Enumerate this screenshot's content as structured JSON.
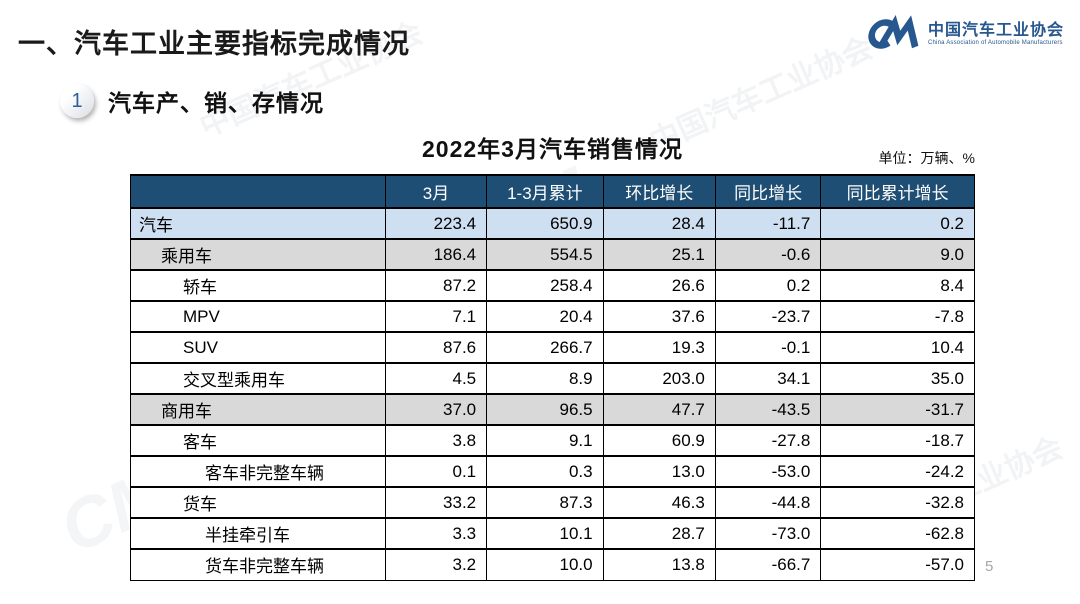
{
  "slide": {
    "main_title": "一、汽车工业主要指标完成情况",
    "section": {
      "badge": "1",
      "title": "汽车产、销、存情况"
    },
    "table_title": "2022年3月汽车销售情况",
    "unit_note": "单位：万辆、%",
    "page_number": "5",
    "watermark_text": "中国汽车工业协会",
    "watermark_monogram": "CM"
  },
  "logo": {
    "name_cn": "中国汽车工业协会",
    "name_en": "China Association of Automobile Manufacturers",
    "color": "#26578E"
  },
  "colors": {
    "header_bg": "#1F4E74",
    "header_text": "#FFFFFF",
    "row_highlight_blue": "#CEDFF1",
    "row_highlight_gray": "#D9D9D9",
    "border": "#000000",
    "badge_number": "#2E5E9E"
  },
  "table": {
    "type": "table",
    "columns": [
      "",
      "3月",
      "1-3月累计",
      "环比增长",
      "同比增长",
      "同比累计增长"
    ],
    "rows": [
      {
        "label": "汽车",
        "level": 0,
        "style": "blue",
        "values": [
          "223.4",
          "650.9",
          "28.4",
          "-11.7",
          "0.2"
        ]
      },
      {
        "label": "乘用车",
        "level": 1,
        "style": "gray",
        "values": [
          "186.4",
          "554.5",
          "25.1",
          "-0.6",
          "9.0"
        ]
      },
      {
        "label": "轿车",
        "level": 2,
        "style": "white",
        "values": [
          "87.2",
          "258.4",
          "26.6",
          "0.2",
          "8.4"
        ]
      },
      {
        "label": "MPV",
        "level": 2,
        "style": "white",
        "values": [
          "7.1",
          "20.4",
          "37.6",
          "-23.7",
          "-7.8"
        ]
      },
      {
        "label": "SUV",
        "level": 2,
        "style": "white",
        "values": [
          "87.6",
          "266.7",
          "19.3",
          "-0.1",
          "10.4"
        ]
      },
      {
        "label": "交叉型乘用车",
        "level": 2,
        "style": "white",
        "values": [
          "4.5",
          "8.9",
          "203.0",
          "34.1",
          "35.0"
        ]
      },
      {
        "label": "商用车",
        "level": 1,
        "style": "gray",
        "values": [
          "37.0",
          "96.5",
          "47.7",
          "-43.5",
          "-31.7"
        ]
      },
      {
        "label": "客车",
        "level": 2,
        "style": "white",
        "values": [
          "3.8",
          "9.1",
          "60.9",
          "-27.8",
          "-18.7"
        ]
      },
      {
        "label": "客车非完整车辆",
        "level": 3,
        "style": "white",
        "values": [
          "0.1",
          "0.3",
          "13.0",
          "-53.0",
          "-24.2"
        ]
      },
      {
        "label": "货车",
        "level": 2,
        "style": "white",
        "values": [
          "33.2",
          "87.3",
          "46.3",
          "-44.8",
          "-32.8"
        ]
      },
      {
        "label": "半挂牵引车",
        "level": 3,
        "style": "white",
        "values": [
          "3.3",
          "10.1",
          "28.7",
          "-73.0",
          "-62.8"
        ]
      },
      {
        "label": "货车非完整车辆",
        "level": 3,
        "style": "white",
        "values": [
          "3.2",
          "10.0",
          "13.8",
          "-66.7",
          "-57.0"
        ]
      }
    ]
  }
}
